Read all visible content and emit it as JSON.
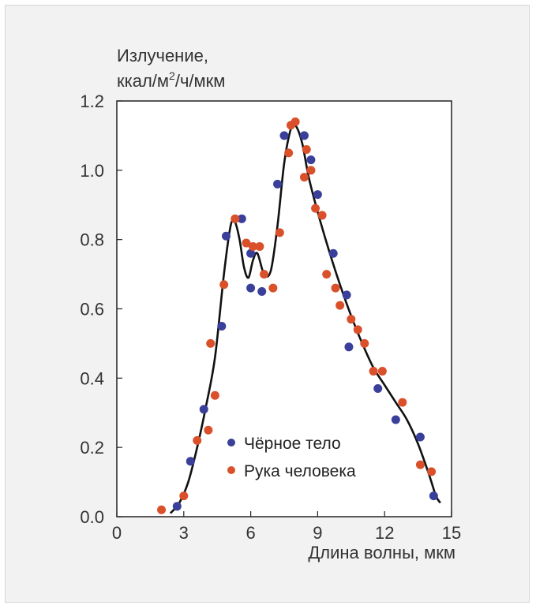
{
  "chart_data": {
    "type": "scatter",
    "ylabel_line1": "Излучение,",
    "ylabel_line2_pre": "ккал/м",
    "ylabel_line2_sup": "2",
    "ylabel_line2_post": "/ч/мкм",
    "xlabel": "Длина волны, мкм",
    "xlim": [
      0,
      15
    ],
    "ylim": [
      0,
      1.2
    ],
    "x_ticks": [
      0,
      3,
      6,
      9,
      12,
      15
    ],
    "y_ticks": [
      0.0,
      0.2,
      0.4,
      0.6,
      0.8,
      1.0,
      1.2
    ],
    "x_tick_labels": [
      "0",
      "3",
      "6",
      "9",
      "12",
      "15"
    ],
    "y_tick_labels": [
      "0.0",
      "0.2",
      "0.4",
      "0.6",
      "0.8",
      "1.0",
      "1.2"
    ],
    "grid": false,
    "legend_position": "bottom-center",
    "series": [
      {
        "name": "Чёрное тело",
        "color": "#3a3f9a",
        "points": [
          [
            2.7,
            0.03
          ],
          [
            3.3,
            0.16
          ],
          [
            3.9,
            0.31
          ],
          [
            4.7,
            0.55
          ],
          [
            4.9,
            0.81
          ],
          [
            5.6,
            0.86
          ],
          [
            6.0,
            0.76
          ],
          [
            6.0,
            0.66
          ],
          [
            6.5,
            0.65
          ],
          [
            7.2,
            0.96
          ],
          [
            7.5,
            1.1
          ],
          [
            8.4,
            1.1
          ],
          [
            8.7,
            1.03
          ],
          [
            9.0,
            0.93
          ],
          [
            9.7,
            0.76
          ],
          [
            10.3,
            0.64
          ],
          [
            10.4,
            0.49
          ],
          [
            11.7,
            0.37
          ],
          [
            12.5,
            0.28
          ],
          [
            13.6,
            0.23
          ],
          [
            14.2,
            0.06
          ]
        ]
      },
      {
        "name": "Рука человека",
        "color": "#d9502a",
        "points": [
          [
            2.0,
            0.02
          ],
          [
            3.0,
            0.06
          ],
          [
            3.6,
            0.22
          ],
          [
            4.1,
            0.25
          ],
          [
            4.2,
            0.5
          ],
          [
            4.4,
            0.35
          ],
          [
            4.8,
            0.67
          ],
          [
            5.3,
            0.86
          ],
          [
            5.8,
            0.79
          ],
          [
            6.1,
            0.78
          ],
          [
            6.4,
            0.78
          ],
          [
            6.6,
            0.7
          ],
          [
            7.0,
            0.66
          ],
          [
            7.3,
            0.82
          ],
          [
            7.7,
            1.05
          ],
          [
            7.8,
            1.13
          ],
          [
            8.0,
            1.14
          ],
          [
            8.4,
            0.98
          ],
          [
            8.5,
            1.06
          ],
          [
            8.7,
            1.0
          ],
          [
            8.9,
            0.89
          ],
          [
            9.2,
            0.87
          ],
          [
            9.4,
            0.7
          ],
          [
            9.8,
            0.66
          ],
          [
            10.0,
            0.61
          ],
          [
            10.5,
            0.57
          ],
          [
            10.8,
            0.54
          ],
          [
            11.1,
            0.5
          ],
          [
            11.5,
            0.42
          ],
          [
            11.9,
            0.42
          ],
          [
            12.8,
            0.33
          ],
          [
            13.6,
            0.15
          ],
          [
            14.1,
            0.13
          ]
        ]
      }
    ],
    "curve": {
      "color": "#111111",
      "points": [
        [
          2.4,
          0.01
        ],
        [
          2.8,
          0.04
        ],
        [
          3.2,
          0.1
        ],
        [
          3.6,
          0.2
        ],
        [
          4.0,
          0.32
        ],
        [
          4.4,
          0.46
        ],
        [
          4.8,
          0.7
        ],
        [
          5.1,
          0.84
        ],
        [
          5.3,
          0.85
        ],
        [
          5.5,
          0.8
        ],
        [
          5.7,
          0.72
        ],
        [
          5.9,
          0.69
        ],
        [
          6.1,
          0.74
        ],
        [
          6.3,
          0.76
        ],
        [
          6.6,
          0.7
        ],
        [
          6.9,
          0.71
        ],
        [
          7.2,
          0.84
        ],
        [
          7.5,
          1.02
        ],
        [
          7.8,
          1.12
        ],
        [
          8.0,
          1.13
        ],
        [
          8.3,
          1.08
        ],
        [
          8.6,
          0.98
        ],
        [
          9.0,
          0.88
        ],
        [
          9.5,
          0.77
        ],
        [
          10.0,
          0.67
        ],
        [
          10.5,
          0.58
        ],
        [
          11.0,
          0.5
        ],
        [
          11.5,
          0.43
        ],
        [
          12.0,
          0.38
        ],
        [
          12.5,
          0.33
        ],
        [
          13.0,
          0.28
        ],
        [
          13.5,
          0.21
        ],
        [
          14.0,
          0.12
        ],
        [
          14.3,
          0.06
        ],
        [
          14.5,
          0.04
        ]
      ]
    }
  }
}
